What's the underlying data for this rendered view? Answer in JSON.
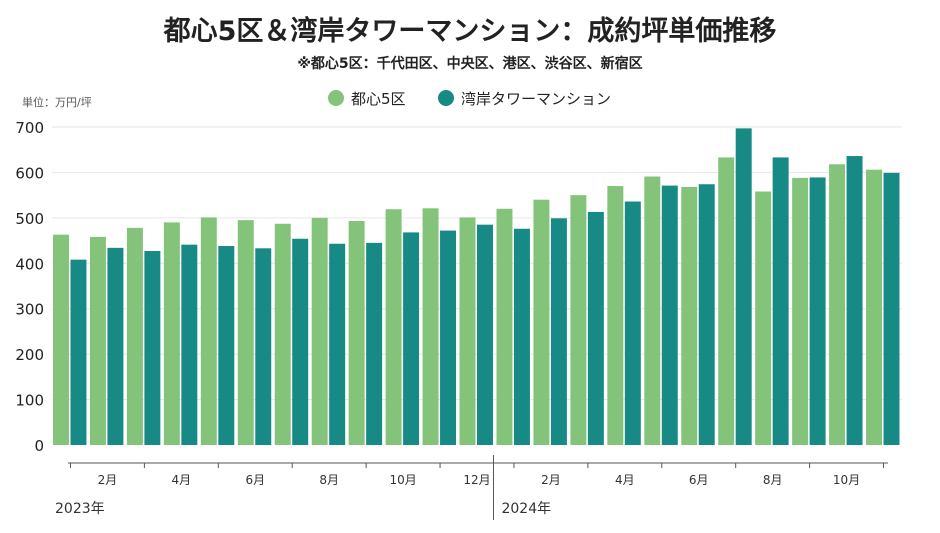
{
  "chart_data": {
    "type": "bar",
    "title": "都心5区＆湾岸タワーマンション：成約坪単価推移",
    "subtitle": "※都心5区：千代田区、中央区、港区、渋谷区、新宿区",
    "ylabel": "単位：万円/坪",
    "ylim": [
      0,
      700
    ],
    "yticks": [
      0,
      100,
      200,
      300,
      400,
      500,
      600,
      700
    ],
    "grid": true,
    "legend_position": "top-center",
    "categories": [
      "2023-01",
      "2023-02",
      "2023-03",
      "2023-04",
      "2023-05",
      "2023-06",
      "2023-07",
      "2023-08",
      "2023-09",
      "2023-10",
      "2023-11",
      "2023-12",
      "2024-01",
      "2024-02",
      "2024-03",
      "2024-04",
      "2024-05",
      "2024-06",
      "2024-07",
      "2024-08",
      "2024-09",
      "2024-10",
      "2024-11"
    ],
    "x_tick_labels": [
      {
        "month": "2023-02",
        "label": "2月"
      },
      {
        "month": "2023-04",
        "label": "4月"
      },
      {
        "month": "2023-06",
        "label": "6月"
      },
      {
        "month": "2023-08",
        "label": "8月"
      },
      {
        "month": "2023-10",
        "label": "10月"
      },
      {
        "month": "2023-12",
        "label": "12月"
      },
      {
        "month": "2024-02",
        "label": "2月"
      },
      {
        "month": "2024-04",
        "label": "4月"
      },
      {
        "month": "2024-06",
        "label": "6月"
      },
      {
        "month": "2024-08",
        "label": "8月"
      },
      {
        "month": "2024-10",
        "label": "10月"
      }
    ],
    "year_labels": [
      {
        "month": "2023-01",
        "label": "2023年"
      },
      {
        "month": "2024-01",
        "label": "2024年"
      }
    ],
    "series": [
      {
        "name": "都心5区",
        "color": "#84c47a",
        "values": [
          463,
          458,
          478,
          490,
          501,
          495,
          487,
          500,
          493,
          519,
          521,
          501,
          520,
          540,
          550,
          570,
          591,
          568,
          633,
          558,
          588,
          618,
          606
        ]
      },
      {
        "name": "湾岸タワーマンション",
        "color": "#178a86",
        "values": [
          408,
          434,
          427,
          441,
          438,
          433,
          454,
          443,
          445,
          468,
          472,
          485,
          476,
          499,
          513,
          536,
          571,
          574,
          697,
          633,
          589,
          636,
          599
        ]
      }
    ]
  }
}
